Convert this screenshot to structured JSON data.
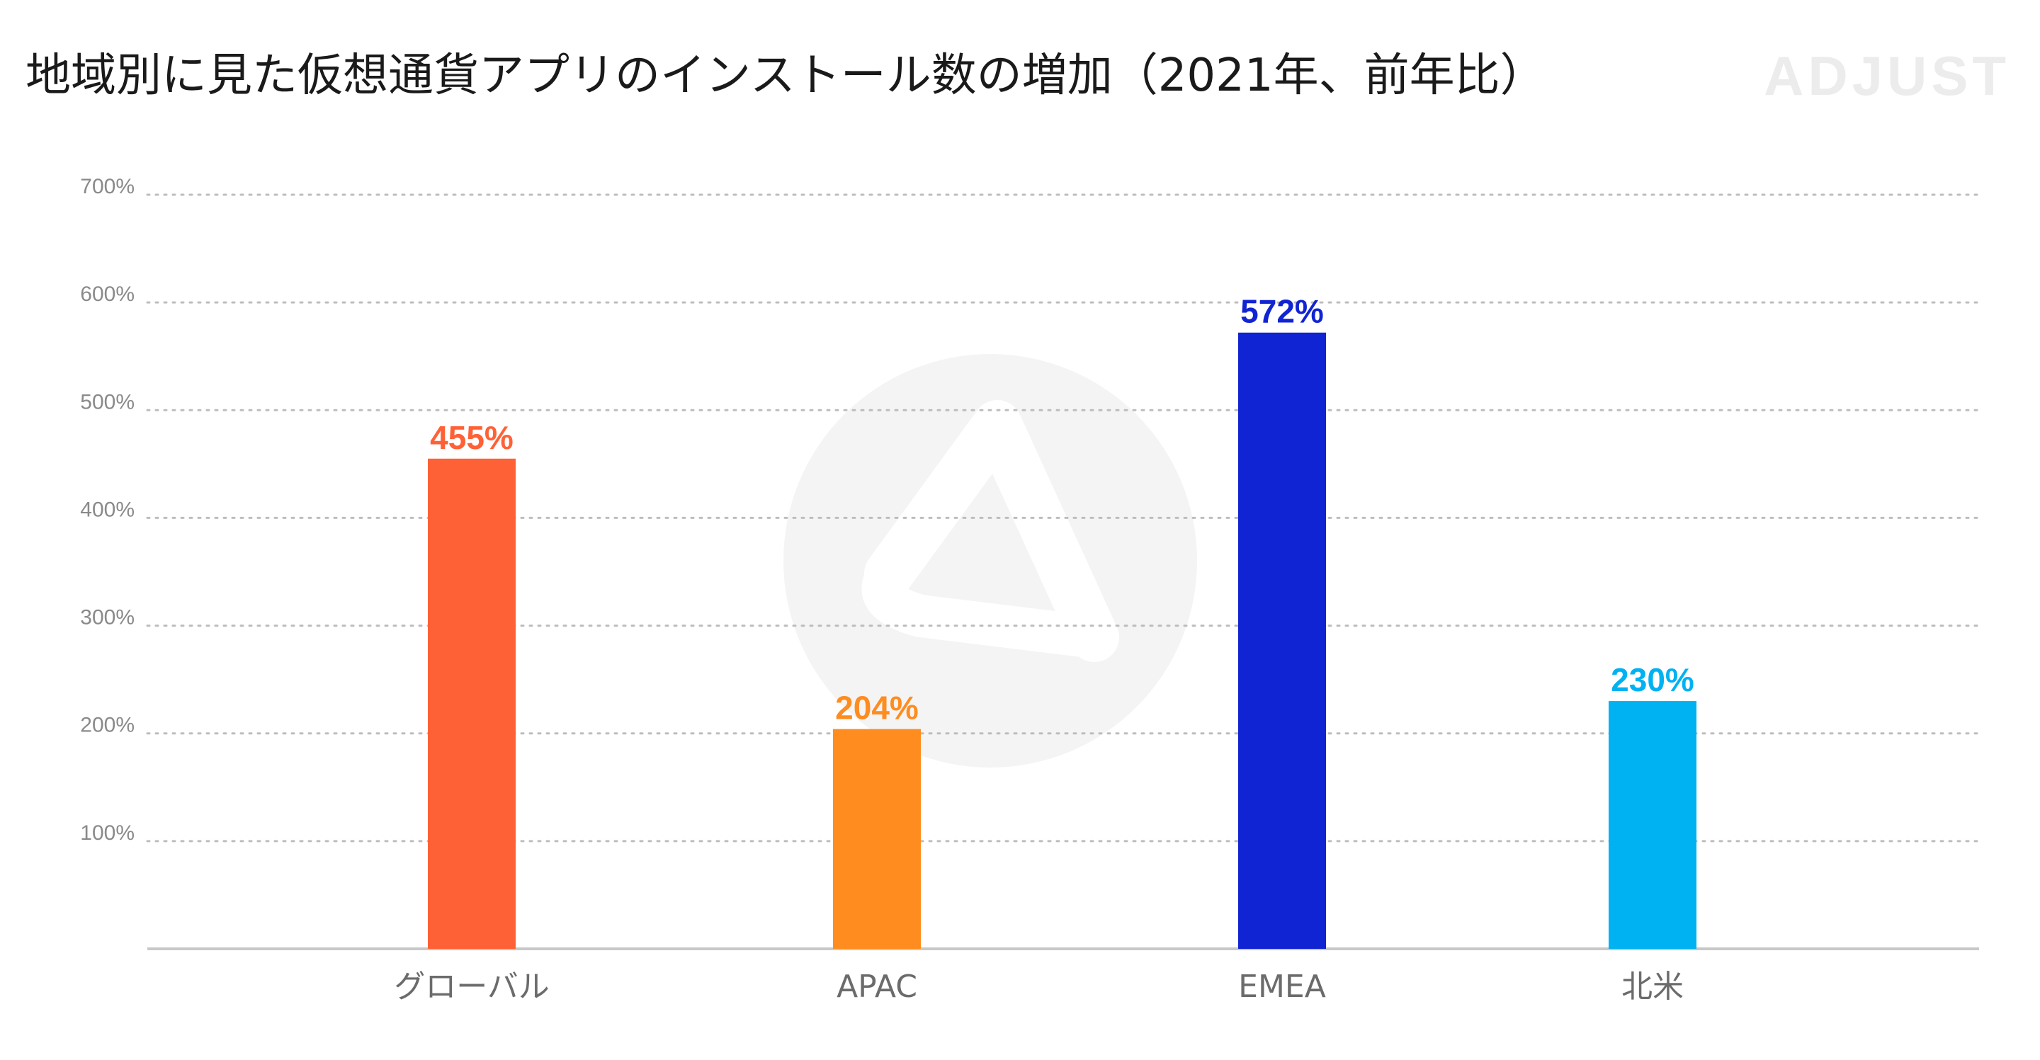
{
  "header": {
    "title": "地域別に見た仮想通貨アプリのインストール数の増加（2021年、前年比）",
    "brand": "ADJUST"
  },
  "chart_data": {
    "type": "bar",
    "title": "地域別に見た仮想通貨アプリのインストール数の増加（2021年、前年比）",
    "xlabel": "",
    "ylabel": "",
    "categories": [
      "グローバル",
      "APAC",
      "EMEA",
      "北米"
    ],
    "values": [
      455,
      204,
      572,
      230
    ],
    "data_labels": [
      "455%",
      "204%",
      "572%",
      "230%"
    ],
    "bar_colors": [
      "#ff6136",
      "#ff8c1f",
      "#1124d3",
      "#00b2f2"
    ],
    "ylim": [
      0,
      700
    ],
    "y_ticks": [
      100,
      200,
      300,
      400,
      500,
      600,
      700
    ],
    "y_tick_labels": [
      "100%",
      "200%",
      "300%",
      "400%",
      "500%",
      "600%",
      "700%"
    ],
    "grid": true,
    "grid_style": "dotted",
    "legend": "none"
  }
}
